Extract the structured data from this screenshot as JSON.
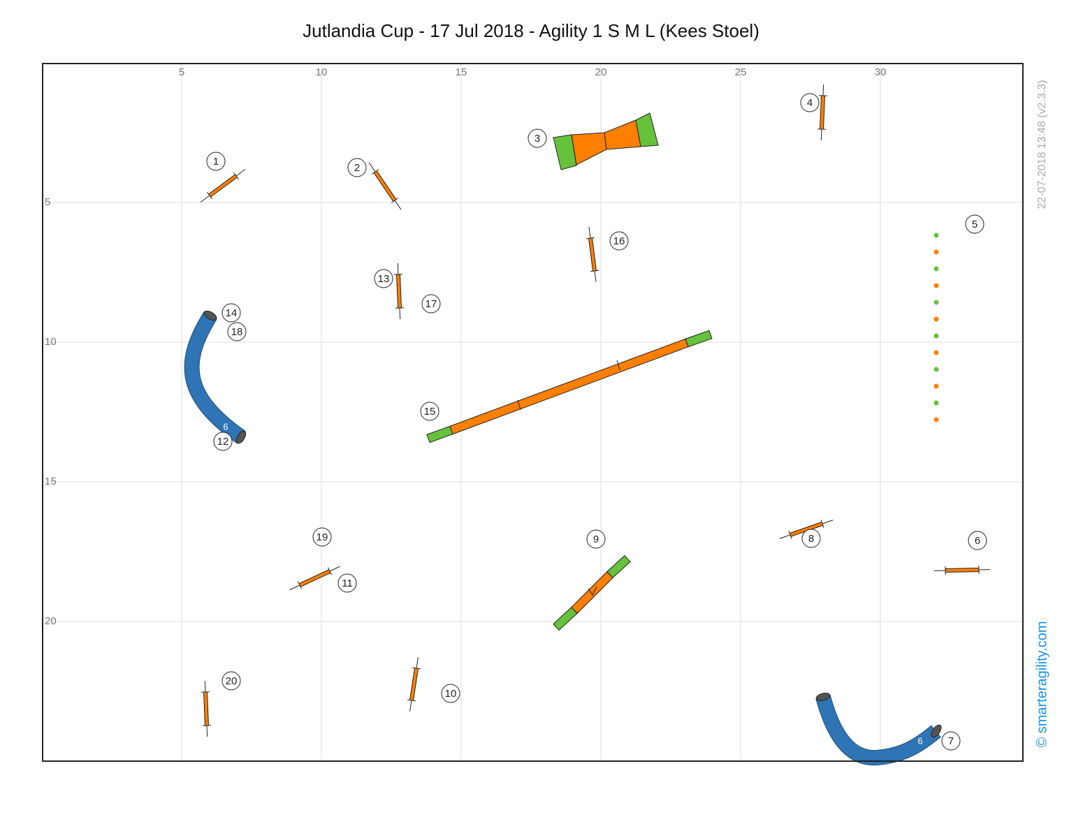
{
  "title": "Jutlandia Cup - 17 Jul 2018 - Agility 1 S M L (Kees Stoel)",
  "x_ticks": [
    5,
    10,
    15,
    20,
    25,
    30
  ],
  "y_ticks": [
    5,
    10,
    15,
    20
  ],
  "timestamp": "22-07-2018 13:48  (v2.3.3)",
  "credit": "© smarteragility.com",
  "obstacle_numbers": [
    "1",
    "2",
    "3",
    "4",
    "5",
    "16",
    "13",
    "17",
    "14",
    "18",
    "15",
    "12",
    "19",
    "9",
    "8",
    "6",
    "11",
    "20",
    "10",
    "7"
  ],
  "tunnel_labels": [
    "6",
    "6"
  ]
}
